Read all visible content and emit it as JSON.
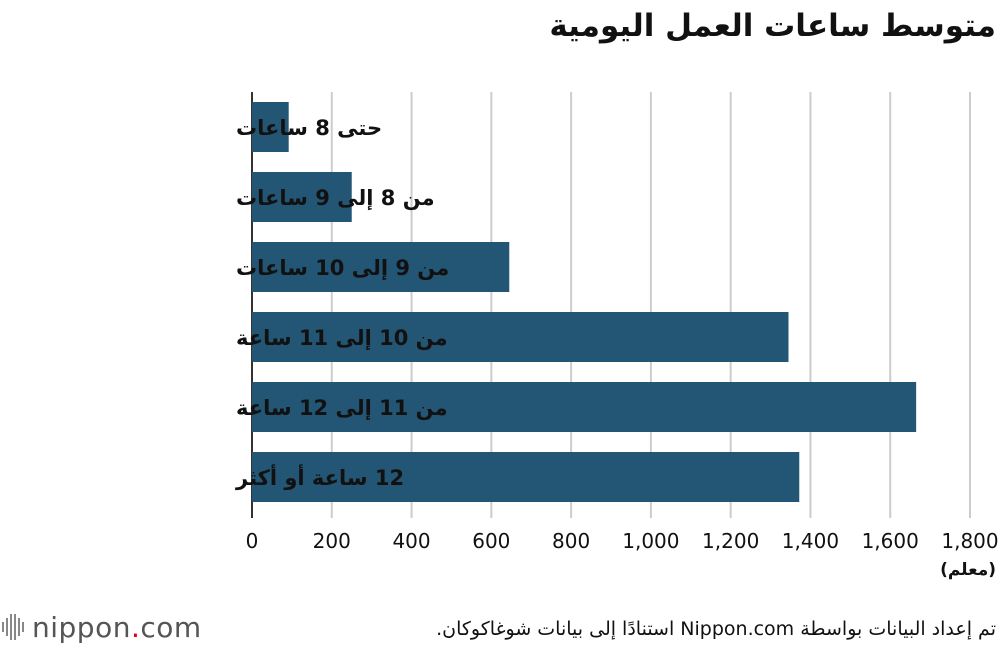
{
  "chart_data": {
    "type": "bar",
    "orientation": "horizontal",
    "title": "متوسط ساعات العمل اليومية",
    "categories": [
      "حتى 8 ساعات",
      "من 8 إلى 9 ساعات",
      "من 9 إلى 10 ساعات",
      "من 10 إلى 11 ساعة",
      "من 11 إلى 12 ساعة",
      "12 ساعة أو أكثر"
    ],
    "values": [
      92,
      250,
      645,
      1345,
      1665,
      1372
    ],
    "xlabel": "(معلم)",
    "ylabel": "",
    "xlim": [
      0,
      1800
    ],
    "xticks": [
      "0",
      "200",
      "400",
      "600",
      "800",
      "1,000",
      "1,200",
      "1,400",
      "1,600",
      "1,800"
    ],
    "grid": true,
    "bar_color": "#235674"
  },
  "source": "تم إعداد البيانات بواسطة Nippon.com استنادًا إلى بيانات شوغاكوكان.",
  "logo": {
    "text": "nippon.com",
    "dot_color": "#e60012"
  }
}
